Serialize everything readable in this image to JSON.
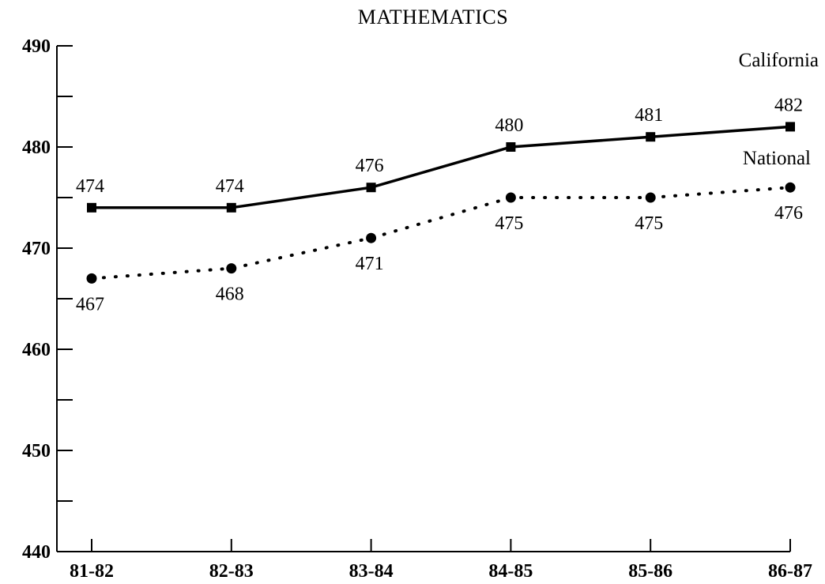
{
  "chart_data": {
    "type": "line",
    "title": "MATHEMATICS",
    "xlabel": "",
    "ylabel": "",
    "categories": [
      "81-82",
      "82-83",
      "83-84",
      "84-85",
      "85-86",
      "86-87"
    ],
    "ylim": [
      440,
      490
    ],
    "yticks": [
      440,
      450,
      460,
      470,
      480,
      490
    ],
    "grid": false,
    "series": [
      {
        "name": "California",
        "values": [
          474,
          474,
          476,
          480,
          481,
          482
        ],
        "labels": [
          "474",
          "474",
          "476",
          "480",
          "481",
          "482"
        ],
        "style": "solid",
        "marker": "square",
        "color": "#000000"
      },
      {
        "name": "National",
        "values": [
          467,
          468,
          471,
          475,
          475,
          476
        ],
        "labels": [
          "467",
          "468",
          "471",
          "475",
          "475",
          "476"
        ],
        "style": "dotted",
        "marker": "circle",
        "color": "#000000"
      }
    ]
  }
}
